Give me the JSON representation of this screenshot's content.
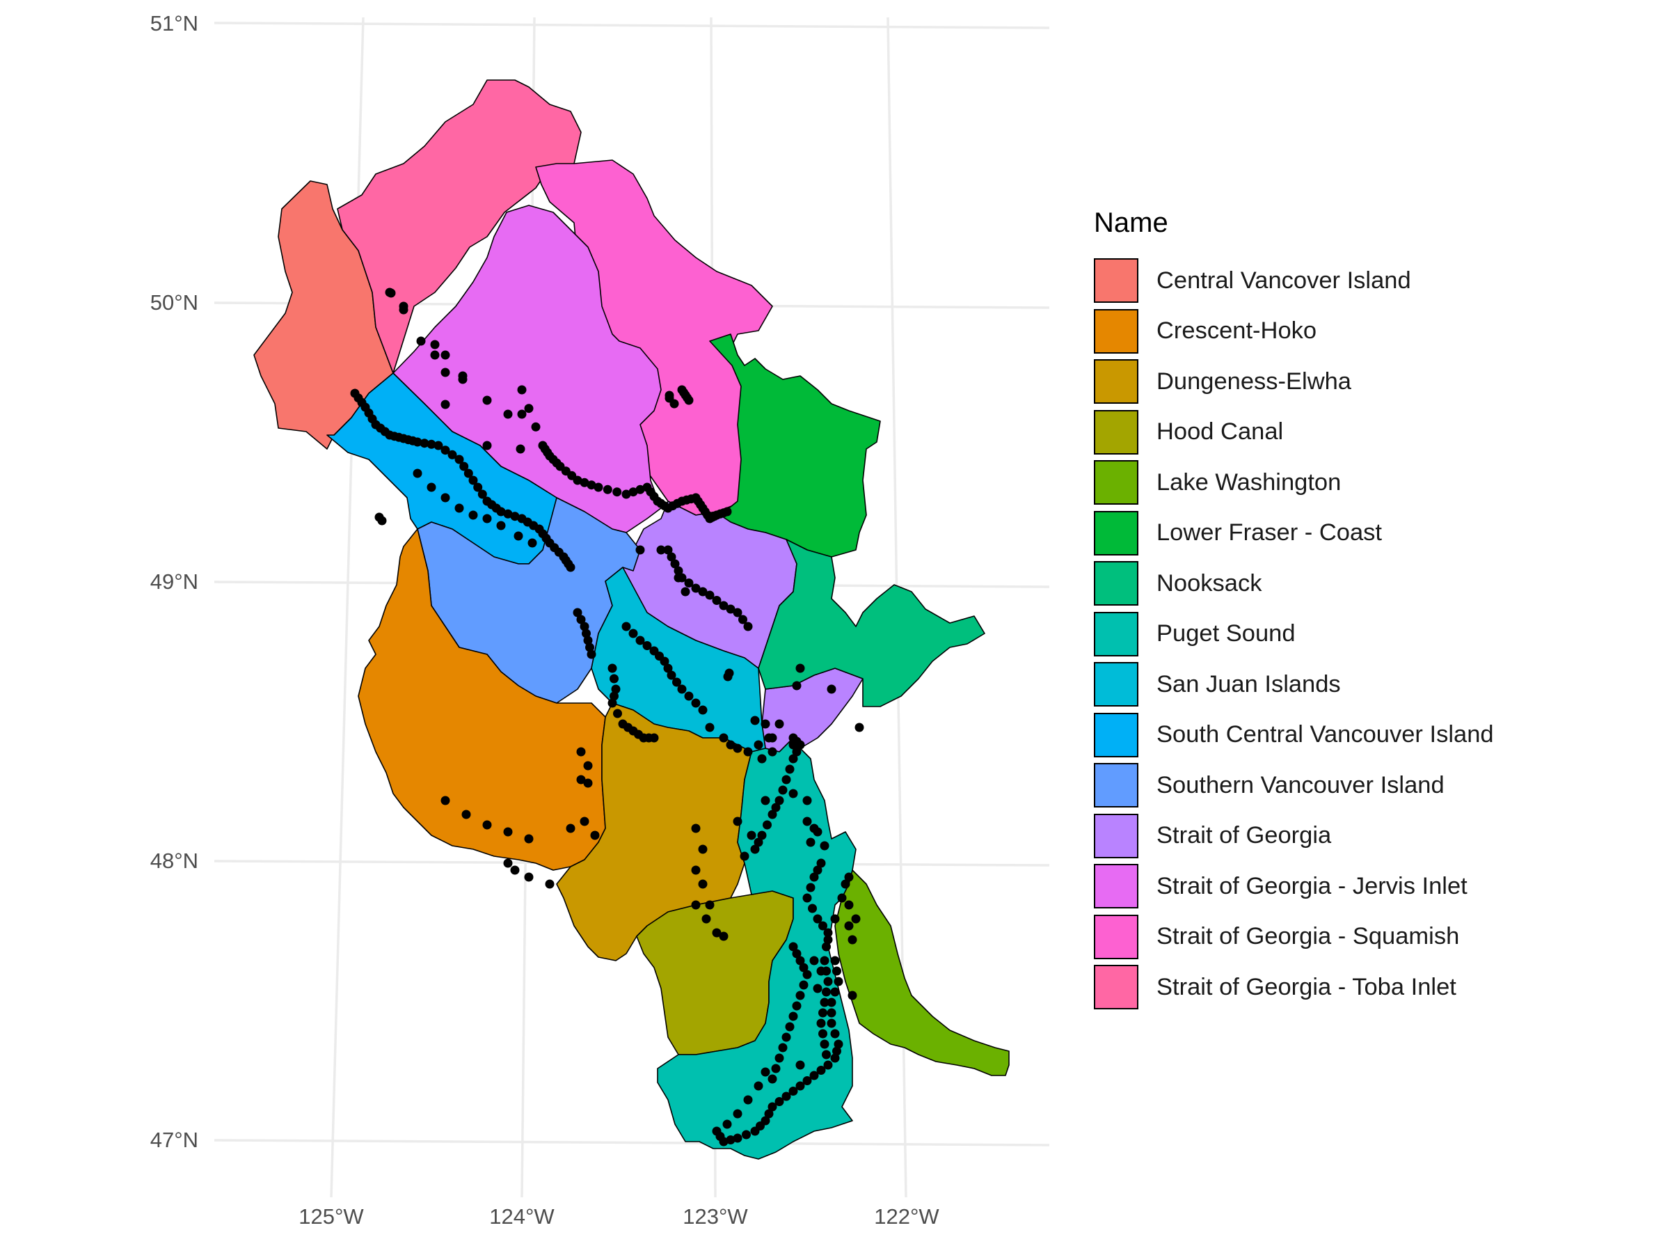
{
  "map": {
    "y_axis_labels": [
      "51°N",
      "50°N",
      "49°N",
      "48°N",
      "47°N"
    ],
    "x_axis_labels": [
      "125°W",
      "124°W",
      "123°W",
      "122°W"
    ]
  },
  "legend": {
    "title": "Name",
    "items": [
      {
        "label": "Central Vancover Island",
        "color": "#F8766D"
      },
      {
        "label": "Crescent-Hoko",
        "color": "#E58700"
      },
      {
        "label": "Dungeness-Elwha",
        "color": "#C99800"
      },
      {
        "label": "Hood Canal",
        "color": "#A3A500"
      },
      {
        "label": "Lake Washington",
        "color": "#6BB100"
      },
      {
        "label": "Lower Fraser - Coast",
        "color": "#00BA38"
      },
      {
        "label": "Nooksack",
        "color": "#00BF7D"
      },
      {
        "label": "Puget Sound",
        "color": "#00C0AF"
      },
      {
        "label": "San Juan Islands",
        "color": "#00BCD8"
      },
      {
        "label": "South Central Vancouver Island",
        "color": "#00B0F6"
      },
      {
        "label": "Southern Vancouver Island",
        "color": "#619CFF"
      },
      {
        "label": "Strait of Georgia",
        "color": "#B983FF"
      },
      {
        "label": "Strait of Georgia - Jervis Inlet",
        "color": "#E76BF3"
      },
      {
        "label": "Strait of Georgia - Squamish",
        "color": "#FD61D1"
      },
      {
        "label": "Strait of Georgia - Toba Inlet",
        "color": "#FF67A4"
      }
    ]
  }
}
